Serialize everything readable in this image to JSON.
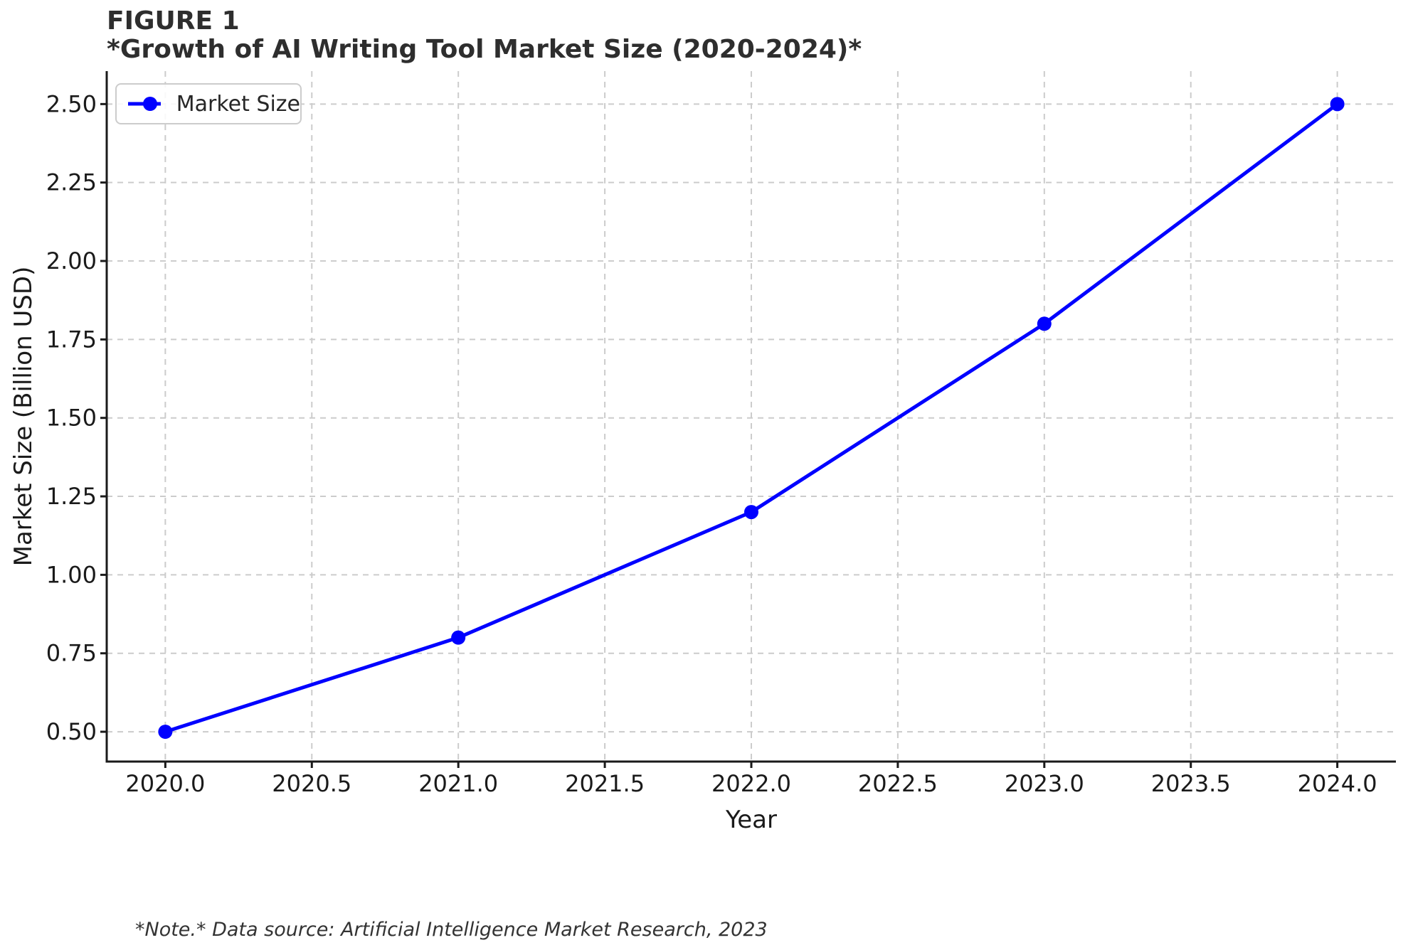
{
  "header": {
    "figure_label": "FIGURE 1",
    "title": "*Growth of AI Writing Tool Market Size (2020-2024)*"
  },
  "footnote": {
    "text": "*Note.* Data source: Artificial Intelligence Market Research, 2023"
  },
  "chart_data": {
    "type": "line",
    "title": "*Growth of AI Writing Tool Market Size (2020-2024)*",
    "x": [
      2020,
      2021,
      2022,
      2023,
      2024
    ],
    "series": [
      {
        "name": "Market Size",
        "values": [
          0.5,
          0.8,
          1.2,
          1.8,
          2.5
        ],
        "color": "#0000ff",
        "marker": "circle"
      }
    ],
    "xlabel": "Year",
    "ylabel": "Market Size (Billion USD)",
    "xlim": [
      2019.8,
      2024.2
    ],
    "ylim": [
      0.405,
      2.605
    ],
    "x_tick_values": [
      2020.0,
      2020.5,
      2021.0,
      2021.5,
      2022.0,
      2022.5,
      2023.0,
      2023.5,
      2024.0
    ],
    "x_tick_labels": [
      "2020.0",
      "2020.5",
      "2021.0",
      "2021.5",
      "2022.0",
      "2022.5",
      "2023.0",
      "2023.5",
      "2024.0"
    ],
    "y_tick_values": [
      0.5,
      0.75,
      1.0,
      1.25,
      1.5,
      1.75,
      2.0,
      2.25,
      2.5
    ],
    "y_tick_labels": [
      "0.50",
      "0.75",
      "1.00",
      "1.25",
      "1.50",
      "1.75",
      "2.00",
      "2.25",
      "2.50"
    ],
    "grid": true,
    "legend": {
      "position": "upper left",
      "label": "Market Size"
    },
    "colors": {
      "line": "#0000ff",
      "grid": "#cccccc",
      "spine": "#1a1a1a",
      "tick_text": "#1a1a1a",
      "title_text": "#2e2e2e",
      "note_text": "#333333"
    }
  }
}
